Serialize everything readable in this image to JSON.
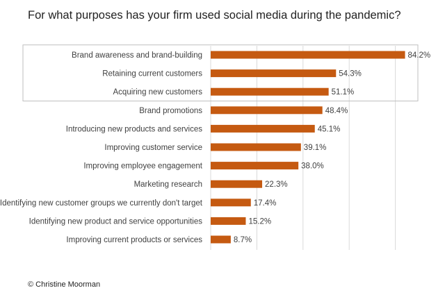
{
  "chart_data": {
    "type": "bar",
    "orientation": "horizontal",
    "title": "For what purposes has your firm used social media during the pandemic?",
    "categories": [
      "Brand awareness and brand-building",
      "Retaining current customers",
      "Acquiring new customers",
      "Brand promotions",
      "Introducing new products and services",
      "Improving customer service",
      "Improving employee engagement",
      "Marketing research",
      "Identifying new customer groups we currently don't target",
      "Identifying new product and service opportunities",
      "Improving current products or services"
    ],
    "values": [
      84.2,
      54.3,
      51.1,
      48.4,
      45.1,
      39.1,
      38.0,
      22.3,
      17.4,
      15.2,
      8.7
    ],
    "value_labels": [
      "84.2%",
      "54.3%",
      "51.1%",
      "48.4%",
      "45.1%",
      "39.1%",
      "38.0%",
      "22.3%",
      "17.4%",
      "15.2%",
      "8.7%"
    ],
    "xlim": [
      0,
      90
    ],
    "grid": true,
    "highlighted_categories": 3,
    "bar_color": "#c55a11",
    "grid_color": "#d9d9d9",
    "highlight_box_color": "#bfbfbf",
    "text_color": "#404040"
  },
  "footer": {
    "credit": "© Christine Moorman"
  }
}
